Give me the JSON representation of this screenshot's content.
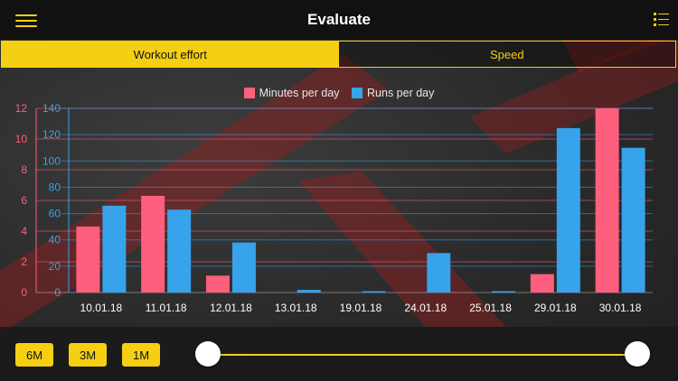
{
  "header": {
    "title": "Evaluate",
    "menu_icon": "hamburger-menu-icon",
    "list_icon": "list-icon"
  },
  "tabs": [
    {
      "label": "Workout effort",
      "active": true
    },
    {
      "label": "Speed",
      "active": false
    }
  ],
  "colors": {
    "accent": "#f5cf13",
    "minutes": "#ff5f7e",
    "runs": "#36a3eb"
  },
  "chart_data": {
    "type": "bar",
    "categories": [
      "10.01.18",
      "11.01.18",
      "12.01.18",
      "13.01.18",
      "19.01.18",
      "24.01.18",
      "25.01.18",
      "29.01.18",
      "30.01.18"
    ],
    "series": [
      {
        "name": "Minutes per day",
        "axis": "left",
        "values": [
          4.3,
          6.3,
          1.1,
          0,
          0,
          0,
          0,
          1.2,
          12
        ]
      },
      {
        "name": "Runs per day",
        "axis": "right",
        "values": [
          66,
          63,
          38,
          2,
          1,
          30,
          1,
          125,
          110
        ]
      }
    ],
    "left_axis": {
      "min": 0,
      "max": 12,
      "ticks": [
        0,
        2,
        4,
        6,
        8,
        10,
        12
      ]
    },
    "right_axis": {
      "min": 0,
      "max": 140,
      "ticks": [
        0,
        20,
        40,
        60,
        80,
        100,
        120,
        140
      ]
    },
    "legend_position": "top-center",
    "grid": true
  },
  "range_buttons": [
    "6M",
    "3M",
    "1M"
  ],
  "slider": {
    "start": 0,
    "end": 1
  }
}
